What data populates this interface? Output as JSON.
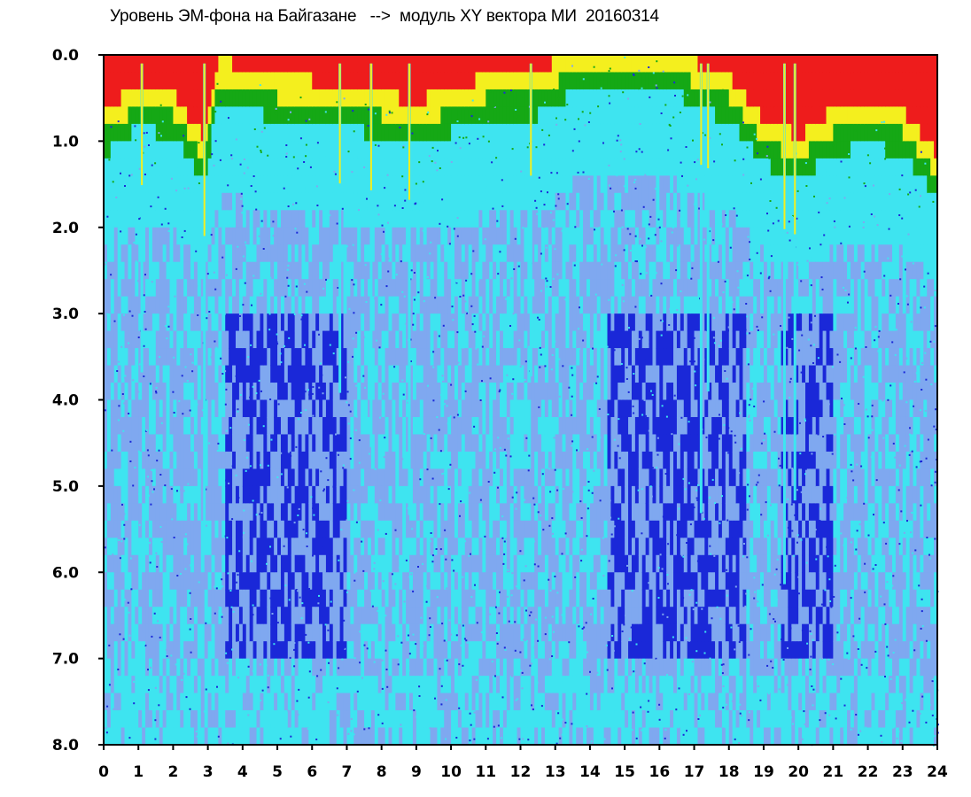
{
  "chart_data": {
    "type": "heatmap",
    "title": "Уровень ЭМ-фона на Байгазане   -->  модуль XY вектора МИ  20160314",
    "xlabel": "",
    "ylabel": "",
    "xlim": [
      0,
      24
    ],
    "ylim": [
      0,
      8
    ],
    "y_inverted": true,
    "x_ticks": [
      "0",
      "1",
      "2",
      "3",
      "4",
      "5",
      "6",
      "7",
      "8",
      "9",
      "10",
      "11",
      "12",
      "13",
      "14",
      "15",
      "16",
      "17",
      "18",
      "19",
      "20",
      "21",
      "22",
      "23",
      "24"
    ],
    "y_ticks": [
      "0.0",
      "1.0",
      "2.0",
      "3.0",
      "4.0",
      "5.0",
      "6.0",
      "7.0",
      "8.0"
    ],
    "color_scale": {
      "low": "#1a28d8",
      "mid_low": "#7fa8f0",
      "mid": "#3ee4f0",
      "mid_high": "#15a815",
      "high": "#f4ef1e",
      "peak": "#ee1c1c"
    },
    "upper_envelope": [
      {
        "x": 0,
        "y": 1.0
      },
      {
        "x": 1,
        "y": 0.7
      },
      {
        "x": 2,
        "y": 0.8
      },
      {
        "x": 2.9,
        "y": 1.3
      },
      {
        "x": 3.3,
        "y": 0.4
      },
      {
        "x": 5,
        "y": 0.6
      },
      {
        "x": 7,
        "y": 0.7
      },
      {
        "x": 9,
        "y": 0.9
      },
      {
        "x": 11,
        "y": 0.6
      },
      {
        "x": 12.3,
        "y": 0.6
      },
      {
        "x": 13.5,
        "y": 0.3
      },
      {
        "x": 15,
        "y": 0.2
      },
      {
        "x": 16.5,
        "y": 0.3
      },
      {
        "x": 17.3,
        "y": 0.5
      },
      {
        "x": 18,
        "y": 0.6
      },
      {
        "x": 19,
        "y": 1.1
      },
      {
        "x": 20,
        "y": 1.3
      },
      {
        "x": 21,
        "y": 1.0
      },
      {
        "x": 22,
        "y": 0.9
      },
      {
        "x": 23,
        "y": 1.0
      },
      {
        "x": 24,
        "y": 1.5
      }
    ],
    "notable_spikes_x": [
      1.1,
      2.9,
      6.8,
      7.7,
      8.8,
      12.3,
      17.2,
      17.4,
      19.6,
      19.9
    ]
  }
}
